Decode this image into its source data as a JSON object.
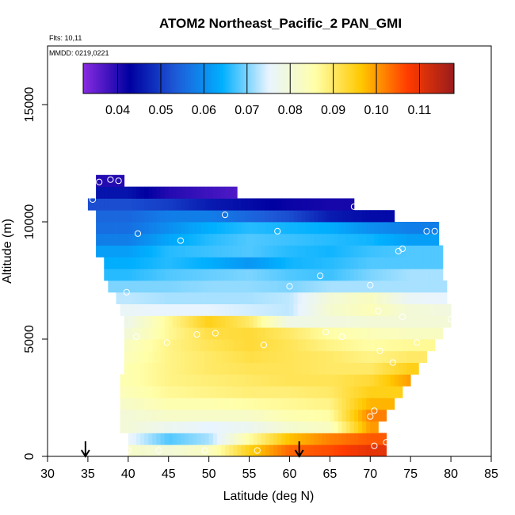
{
  "chart_data": {
    "type": "heatmap",
    "title": "ATOM2 Northeast_Pacific_2 PAN_GMI",
    "annotations": [
      "Flts: 10,11",
      "MMDD: 0219,0221"
    ],
    "xlabel": "Latitude (deg N)",
    "ylabel": "Altitude (m)",
    "xlim": [
      30,
      85
    ],
    "ylim": [
      0,
      17500
    ],
    "x_ticks": [
      30,
      35,
      40,
      45,
      50,
      55,
      60,
      65,
      70,
      75,
      80,
      85
    ],
    "y_ticks": [
      0,
      5000,
      10000,
      15000
    ],
    "colorbar": {
      "placement": "top",
      "range": [
        0.032,
        0.118
      ],
      "ticks": [
        0.04,
        0.05,
        0.06,
        0.07,
        0.08,
        0.09,
        0.1,
        0.11
      ],
      "tick_labels": [
        "0.04",
        "0.05",
        "0.06",
        "0.07",
        "0.08",
        "0.09",
        "0.10",
        "0.11"
      ],
      "colors": [
        "#8a2be2",
        "#0000a0",
        "#1e5ad8",
        "#00b0ff",
        "#e8f4ff",
        "#ffffaa",
        "#ffc800",
        "#ff3c00",
        "#9a1c1c"
      ]
    },
    "grid": false,
    "altitude_levels_m": [
      250,
      750,
      1250,
      1750,
      2250,
      2750,
      3250,
      3750,
      4250,
      4750,
      5250,
      5750,
      6250,
      6750,
      7250,
      7750,
      8250,
      8750,
      9250,
      9750,
      10250,
      10750,
      11250,
      11750
    ],
    "latitude_extent": [
      [
        40.0,
        72.0
      ],
      [
        40.0,
        72.0
      ],
      [
        39.0,
        71.0
      ],
      [
        39.0,
        72.0
      ],
      [
        39.0,
        73.0
      ],
      [
        39.0,
        74.0
      ],
      [
        39.0,
        75.0
      ],
      [
        39.5,
        76.0
      ],
      [
        39.5,
        77.0
      ],
      [
        39.5,
        78.0
      ],
      [
        39.5,
        79.0
      ],
      [
        39.5,
        80.0
      ],
      [
        39.0,
        80.0
      ],
      [
        38.5,
        79.5
      ],
      [
        37.5,
        79.5
      ],
      [
        37.0,
        79.0
      ],
      [
        37.0,
        79.0
      ],
      [
        36.0,
        79.0
      ],
      [
        36.0,
        78.5
      ],
      [
        36.0,
        78.5
      ],
      [
        36.0,
        73.0
      ],
      [
        35.0,
        68.0
      ],
      [
        36.0,
        53.5
      ],
      [
        36.0,
        39.5
      ]
    ],
    "profile_latitudes": [
      40,
      45,
      50,
      55,
      60,
      65,
      70,
      75,
      80
    ],
    "pan_values": [
      [
        0.082,
        0.08,
        0.083,
        0.095,
        0.104,
        0.106,
        0.11,
        null,
        null
      ],
      [
        0.076,
        0.068,
        0.072,
        0.086,
        0.097,
        0.102,
        0.105,
        null,
        null
      ],
      [
        0.08,
        0.077,
        0.075,
        0.077,
        0.081,
        0.083,
        0.1,
        null,
        null
      ],
      [
        0.08,
        0.082,
        0.082,
        0.082,
        0.085,
        0.086,
        0.102,
        null,
        null
      ],
      [
        0.082,
        0.085,
        0.085,
        0.086,
        0.087,
        0.088,
        0.098,
        null,
        null
      ],
      [
        0.084,
        0.087,
        0.088,
        0.089,
        0.089,
        0.09,
        0.095,
        null,
        null
      ],
      [
        0.085,
        0.088,
        0.089,
        0.09,
        0.091,
        0.091,
        0.093,
        0.1,
        null
      ],
      [
        0.085,
        0.088,
        0.09,
        0.091,
        0.091,
        0.09,
        0.09,
        0.095,
        null
      ],
      [
        0.084,
        0.088,
        0.09,
        0.092,
        0.091,
        0.09,
        0.088,
        0.09,
        null
      ],
      [
        0.083,
        0.088,
        0.091,
        0.093,
        0.091,
        0.088,
        0.086,
        0.087,
        null
      ],
      [
        0.08,
        0.087,
        0.092,
        0.093,
        0.09,
        0.086,
        0.084,
        0.083,
        null
      ],
      [
        0.078,
        0.087,
        0.095,
        0.09,
        0.078,
        0.079,
        0.08,
        0.08,
        null
      ],
      [
        0.076,
        0.075,
        0.075,
        0.074,
        0.073,
        0.081,
        0.084,
        0.08,
        0.079
      ],
      [
        0.073,
        0.072,
        0.072,
        0.072,
        0.073,
        0.08,
        0.083,
        0.076,
        0.075
      ],
      [
        0.07,
        0.07,
        0.071,
        0.071,
        0.07,
        0.072,
        0.072,
        0.072,
        null
      ],
      [
        0.066,
        0.068,
        0.069,
        0.07,
        0.068,
        0.067,
        0.07,
        0.072,
        null
      ],
      [
        0.064,
        0.066,
        0.064,
        0.061,
        0.065,
        0.066,
        0.068,
        0.068,
        null
      ],
      [
        0.062,
        0.066,
        0.067,
        0.068,
        0.066,
        0.065,
        0.067,
        0.068,
        null
      ],
      [
        0.058,
        0.063,
        0.066,
        0.068,
        0.067,
        0.066,
        0.065,
        0.062,
        null
      ],
      [
        0.056,
        0.06,
        0.064,
        0.066,
        0.065,
        0.064,
        0.06,
        0.058,
        null
      ],
      [
        0.055,
        0.058,
        0.058,
        0.055,
        0.052,
        0.046,
        0.044,
        null,
        null
      ],
      [
        0.052,
        0.05,
        0.046,
        0.044,
        0.042,
        0.041,
        null,
        null,
        null
      ],
      [
        0.045,
        0.04,
        0.038,
        0.036,
        null,
        null,
        null,
        null,
        null
      ],
      [
        0.04,
        null,
        null,
        null,
        null,
        null,
        null,
        null,
        null
      ]
    ],
    "sample_points": [
      [
        35.6,
        10950
      ],
      [
        36.4,
        11700
      ],
      [
        37.8,
        11800
      ],
      [
        38.8,
        11750
      ],
      [
        41.2,
        9500
      ],
      [
        46.5,
        9200
      ],
      [
        52.0,
        10300
      ],
      [
        58.5,
        9600
      ],
      [
        68.0,
        10650
      ],
      [
        73.5,
        8750
      ],
      [
        74.0,
        8850
      ],
      [
        77.0,
        9600
      ],
      [
        78.0,
        9600
      ],
      [
        63.8,
        7700
      ],
      [
        60.0,
        7250
      ],
      [
        70.0,
        7300
      ],
      [
        39.8,
        7000
      ],
      [
        71.0,
        6200
      ],
      [
        74.0,
        5950
      ],
      [
        80.0,
        5850
      ],
      [
        41.0,
        5100
      ],
      [
        44.8,
        4850
      ],
      [
        48.5,
        5200
      ],
      [
        50.8,
        5250
      ],
      [
        56.8,
        4750
      ],
      [
        64.5,
        5300
      ],
      [
        66.5,
        5100
      ],
      [
        71.2,
        4500
      ],
      [
        72.8,
        4000
      ],
      [
        75.8,
        4850
      ],
      [
        70.5,
        1950
      ],
      [
        70.0,
        1700
      ],
      [
        40.0,
        250
      ],
      [
        43.8,
        250
      ],
      [
        49.5,
        250
      ],
      [
        56.0,
        250
      ],
      [
        70.5,
        450
      ],
      [
        72.0,
        600
      ]
    ],
    "flight_markers_lat": [
      34.7,
      61.2
    ]
  }
}
